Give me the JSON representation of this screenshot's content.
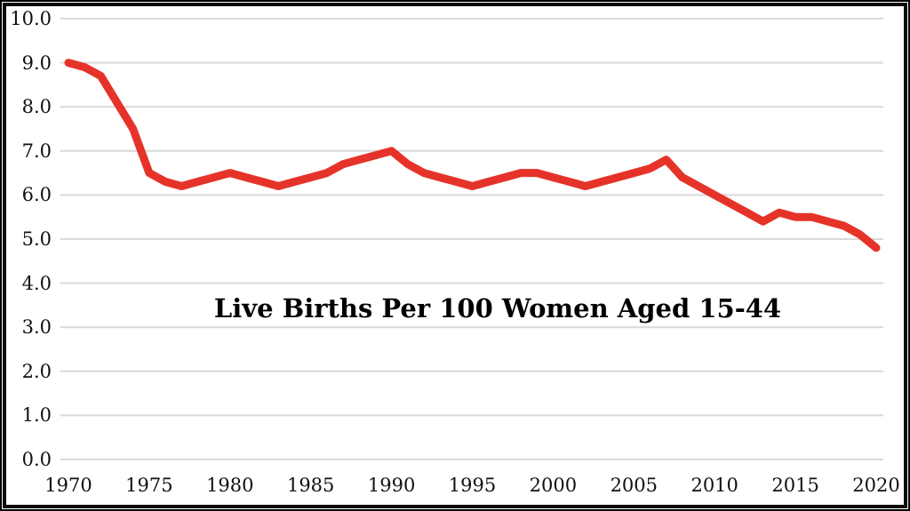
{
  "chart_data": {
    "type": "line",
    "title": "Live Births Per 100 Women Aged 15-44",
    "xlabel": "",
    "ylabel": "",
    "xlim": [
      1970,
      2020
    ],
    "ylim": [
      0.0,
      10.0
    ],
    "grid": "horizontal",
    "legend": "none",
    "y_ticks": [
      0,
      1,
      2,
      3,
      4,
      5,
      6,
      7,
      8,
      9,
      10
    ],
    "y_tick_labels": [
      "0.0",
      "1.0",
      "2.0",
      "3.0",
      "4.0",
      "5.0",
      "6.0",
      "7.0",
      "8.0",
      "9.0",
      "10.0"
    ],
    "x_ticks": [
      1970,
      1975,
      1980,
      1985,
      1990,
      1995,
      2000,
      2005,
      2010,
      2015,
      2020
    ],
    "x_tick_labels": [
      "1970",
      "1975",
      "1980",
      "1985",
      "1990",
      "1995",
      "2000",
      "2005",
      "2010",
      "2015",
      "2020"
    ],
    "series": [
      {
        "name": "Live births per 100 women aged 15-44",
        "color": "#e63329",
        "x": [
          1970,
          1971,
          1972,
          1973,
          1974,
          1975,
          1976,
          1977,
          1978,
          1979,
          1980,
          1981,
          1982,
          1983,
          1984,
          1985,
          1986,
          1987,
          1988,
          1989,
          1990,
          1991,
          1992,
          1993,
          1994,
          1995,
          1996,
          1997,
          1998,
          1999,
          2000,
          2001,
          2002,
          2003,
          2004,
          2005,
          2006,
          2007,
          2008,
          2009,
          2010,
          2011,
          2012,
          2013,
          2014,
          2015,
          2016,
          2017,
          2018,
          2019,
          2020
        ],
        "values": [
          9.0,
          8.9,
          8.7,
          8.1,
          7.5,
          6.5,
          6.3,
          6.2,
          6.3,
          6.4,
          6.5,
          6.4,
          6.3,
          6.2,
          6.3,
          6.4,
          6.5,
          6.7,
          6.8,
          6.9,
          7.0,
          6.7,
          6.5,
          6.4,
          6.3,
          6.2,
          6.3,
          6.4,
          6.5,
          6.5,
          6.4,
          6.3,
          6.2,
          6.3,
          6.4,
          6.5,
          6.6,
          6.8,
          6.4,
          6.2,
          6.0,
          5.8,
          5.6,
          5.4,
          5.6,
          5.5,
          5.5,
          5.4,
          5.3,
          5.1,
          4.8
        ]
      }
    ],
    "colors": {
      "line": "#e63329",
      "gridline": "#d9d9d9",
      "text": "#000000",
      "frame": "#000000",
      "background": "#ffffff"
    }
  }
}
